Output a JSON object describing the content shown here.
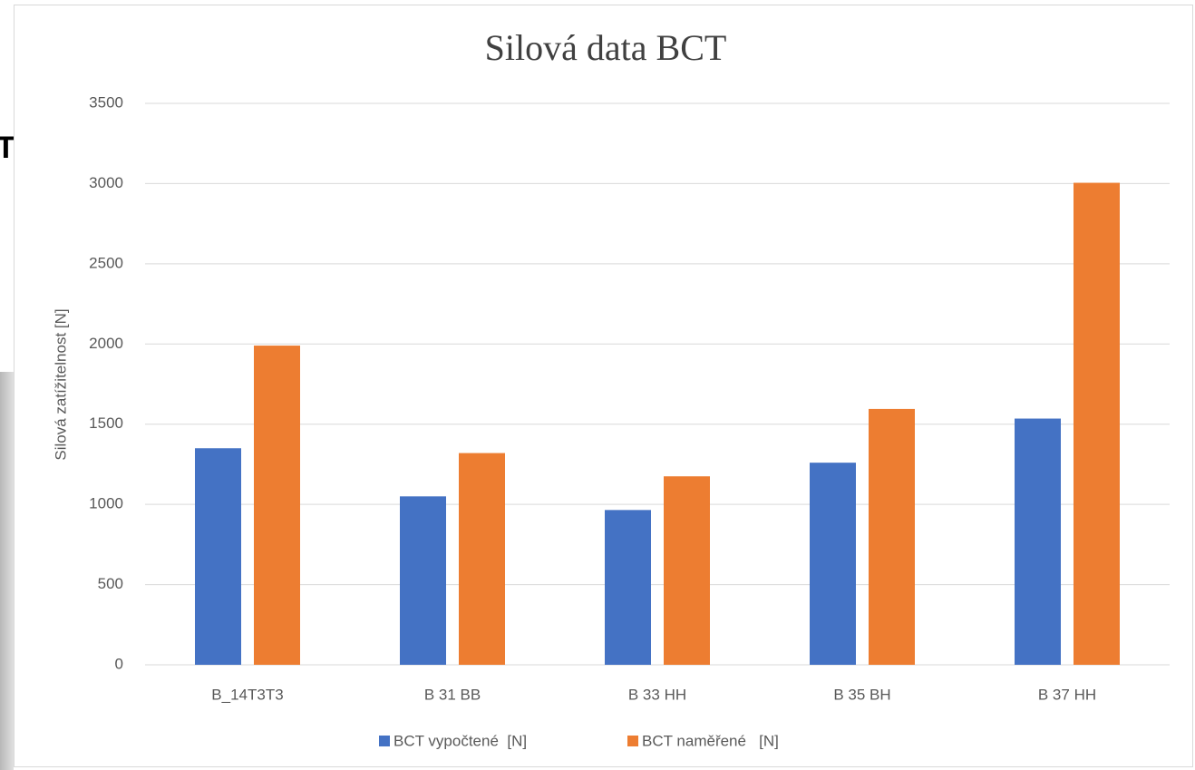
{
  "background": {
    "text": "T"
  },
  "chart_data": {
    "type": "bar",
    "title": "Silová data BCT",
    "y_label": "Silová zatížitelnost [N]",
    "categories": [
      "B_14T3T3",
      "B 31 BB",
      "B 33 HH",
      "B 35 BH",
      "B 37 HH"
    ],
    "series": [
      {
        "name": "BCT vypočtené  [N]",
        "color": "#4472c4",
        "values": [
          1350,
          1050,
          965,
          1260,
          1535
        ]
      },
      {
        "name": "BCT naměřené   [N]",
        "color": "#ed7d31",
        "values": [
          1990,
          1320,
          1175,
          1595,
          3005
        ]
      }
    ],
    "ylim": [
      0,
      3500
    ],
    "yticks": [
      0,
      500,
      1000,
      1500,
      2000,
      2500,
      3000,
      3500
    ],
    "grid": true,
    "legend": "bottom"
  }
}
